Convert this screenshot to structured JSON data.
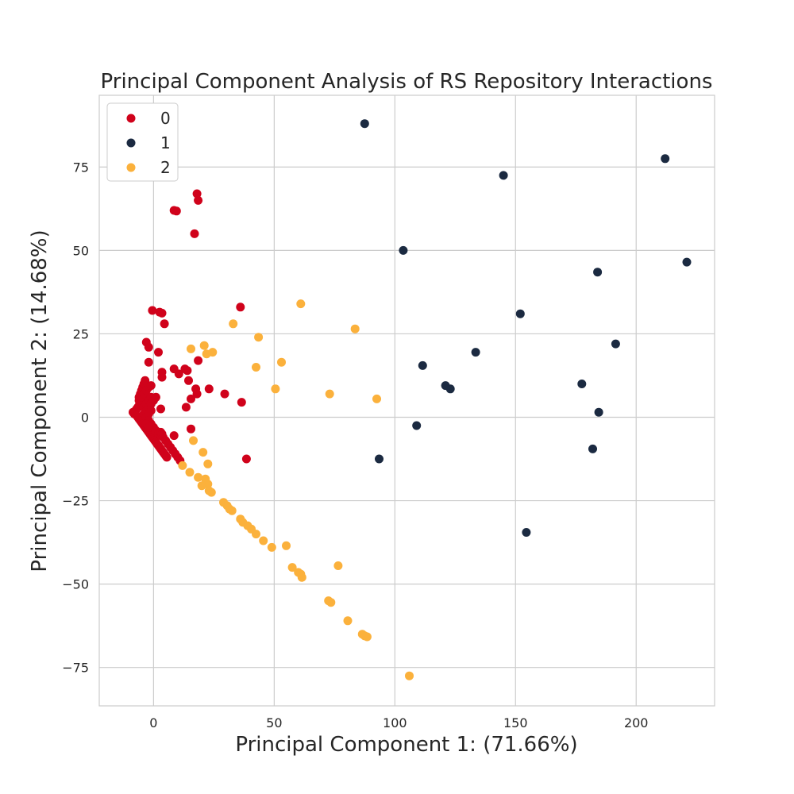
{
  "chart_data": {
    "type": "scatter",
    "title": "Principal Component Analysis of RS Repository Interactions",
    "xlabel": "Principal Component 1: (71.66%)",
    "ylabel": "Principal Component 2: (14.68%)",
    "xlim": [
      -22.5,
      232.5
    ],
    "ylim": [
      -86.5,
      96.5
    ],
    "xticks": [
      0,
      50,
      100,
      150,
      200
    ],
    "yticks": [
      -75,
      -50,
      -25,
      0,
      25,
      50,
      75
    ],
    "xtick_labels": [
      "0",
      "50",
      "100",
      "150",
      "200"
    ],
    "ytick_labels": [
      "−75",
      "−50",
      "−25",
      "0",
      "25",
      "50",
      "75"
    ],
    "grid": true,
    "legend_position": "top-left",
    "series": [
      {
        "name": "0",
        "color": "#d0021b",
        "points": [
          [
            -8.5,
            1.5
          ],
          [
            -8,
            1
          ],
          [
            -7.5,
            2
          ],
          [
            -7,
            2.5
          ],
          [
            -6.5,
            3
          ],
          [
            -6,
            3.5
          ],
          [
            -5.5,
            4
          ],
          [
            -5,
            4.5
          ],
          [
            -7,
            0.5
          ],
          [
            -6.5,
            0
          ],
          [
            -6,
            -0.5
          ],
          [
            -5.5,
            -1
          ],
          [
            -5,
            -1.5
          ],
          [
            -4.5,
            -2
          ],
          [
            -4,
            -2.5
          ],
          [
            -3.5,
            -3
          ],
          [
            -3,
            -3.5
          ],
          [
            -2.5,
            -4
          ],
          [
            -2,
            -4.5
          ],
          [
            -1.5,
            -5
          ],
          [
            -1,
            -5.5
          ],
          [
            -0.5,
            -6
          ],
          [
            0,
            -6.5
          ],
          [
            0.5,
            -7
          ],
          [
            1,
            -7.5
          ],
          [
            1.5,
            -8
          ],
          [
            2,
            -8.5
          ],
          [
            2.5,
            -9
          ],
          [
            3,
            -9.5
          ],
          [
            3.5,
            -10
          ],
          [
            4,
            -10.5
          ],
          [
            4.5,
            -11
          ],
          [
            5,
            -11.5
          ],
          [
            5.5,
            -12
          ],
          [
            -6,
            6
          ],
          [
            -5.5,
            7
          ],
          [
            -5,
            8
          ],
          [
            -4.5,
            9
          ],
          [
            -4,
            10
          ],
          [
            -3.5,
            11
          ],
          [
            -6,
            5
          ],
          [
            -5,
            6
          ],
          [
            -4,
            7
          ],
          [
            -3,
            8
          ],
          [
            -2,
            9
          ],
          [
            -1,
            9.5
          ],
          [
            -4,
            3
          ],
          [
            -3,
            4
          ],
          [
            -2,
            5
          ],
          [
            -1,
            6
          ],
          [
            -4,
            1
          ],
          [
            -3,
            2
          ],
          [
            -2,
            3
          ],
          [
            -1,
            4
          ],
          [
            0,
            5
          ],
          [
            1,
            6
          ],
          [
            -3,
            0
          ],
          [
            -2,
            1
          ],
          [
            -1,
            2
          ],
          [
            -2,
            -1
          ],
          [
            -1,
            -2
          ],
          [
            0,
            -3
          ],
          [
            1,
            -4
          ],
          [
            2,
            -5
          ],
          [
            3,
            -5.5
          ],
          [
            3,
            -4.5
          ],
          [
            3.5,
            -5
          ],
          [
            4,
            -6
          ],
          [
            5,
            -7
          ],
          [
            6,
            -8
          ],
          [
            7,
            -9
          ],
          [
            8,
            -10
          ],
          [
            9,
            -11
          ],
          [
            10,
            -12
          ],
          [
            11,
            -13
          ],
          [
            -3,
            -2
          ],
          [
            -2,
            -3
          ],
          [
            18,
            67
          ],
          [
            18.5,
            65
          ],
          [
            8.5,
            62
          ],
          [
            9.5,
            61.8
          ],
          [
            17,
            55
          ],
          [
            -0.5,
            32
          ],
          [
            2.5,
            31.5
          ],
          [
            3.5,
            31.2
          ],
          [
            36,
            33
          ],
          [
            4.5,
            28
          ],
          [
            -3,
            22.5
          ],
          [
            -2,
            21
          ],
          [
            2,
            19.5
          ],
          [
            18.5,
            17
          ],
          [
            -2,
            16.5
          ],
          [
            13,
            14.5
          ],
          [
            8.5,
            14.5
          ],
          [
            14,
            14
          ],
          [
            3.5,
            13.5
          ],
          [
            10.5,
            13
          ],
          [
            3.5,
            12
          ],
          [
            14.5,
            11
          ],
          [
            17.5,
            8.5
          ],
          [
            23,
            8.5
          ],
          [
            18,
            7
          ],
          [
            29.5,
            7
          ],
          [
            15.5,
            5.5
          ],
          [
            3,
            2.5
          ],
          [
            13.5,
            3
          ],
          [
            36.5,
            4.5
          ],
          [
            15.5,
            -3.5
          ],
          [
            8.5,
            -5.5
          ],
          [
            38.5,
            -12.5
          ]
        ]
      },
      {
        "name": "1",
        "color": "#1b2a41",
        "points": [
          [
            87.5,
            88
          ],
          [
            145,
            72.5
          ],
          [
            212,
            77.5
          ],
          [
            103.5,
            50
          ],
          [
            221,
            46.5
          ],
          [
            184,
            43.5
          ],
          [
            152,
            31
          ],
          [
            191.5,
            22
          ],
          [
            133.5,
            19.5
          ],
          [
            111.5,
            15.5
          ],
          [
            121,
            9.5
          ],
          [
            123,
            8.5
          ],
          [
            177.5,
            10
          ],
          [
            184.5,
            1.5
          ],
          [
            109,
            -2.5
          ],
          [
            182,
            -9.5
          ],
          [
            93.5,
            -12.5
          ],
          [
            154.5,
            -34.5
          ]
        ]
      },
      {
        "name": "2",
        "color": "#fbb13c",
        "points": [
          [
            61,
            34
          ],
          [
            33,
            28
          ],
          [
            83.5,
            26.5
          ],
          [
            43.5,
            24
          ],
          [
            15.5,
            20.5
          ],
          [
            21,
            21.5
          ],
          [
            24.5,
            19.5
          ],
          [
            22,
            19
          ],
          [
            53,
            16.5
          ],
          [
            42.5,
            15
          ],
          [
            50.5,
            8.5
          ],
          [
            73,
            7
          ],
          [
            92.5,
            5.5
          ],
          [
            16.5,
            -7
          ],
          [
            20.5,
            -10.5
          ],
          [
            22.5,
            -14
          ],
          [
            12,
            -14.5
          ],
          [
            15,
            -16.5
          ],
          [
            18.5,
            -18
          ],
          [
            21.5,
            -18.5
          ],
          [
            22.5,
            -20
          ],
          [
            20,
            -20.5
          ],
          [
            23,
            -22
          ],
          [
            24,
            -22.5
          ],
          [
            29,
            -25.5
          ],
          [
            30.5,
            -26.5
          ],
          [
            31.5,
            -27.5
          ],
          [
            32.5,
            -28
          ],
          [
            36,
            -30.5
          ],
          [
            37,
            -31.5
          ],
          [
            39,
            -32.5
          ],
          [
            40.5,
            -33.5
          ],
          [
            42.5,
            -35
          ],
          [
            45.5,
            -37
          ],
          [
            49,
            -39
          ],
          [
            55,
            -38.5
          ],
          [
            57.5,
            -45
          ],
          [
            60,
            -46.5
          ],
          [
            61,
            -47
          ],
          [
            61.5,
            -48
          ],
          [
            76.5,
            -44.5
          ],
          [
            72.5,
            -55
          ],
          [
            73.5,
            -55.5
          ],
          [
            80.5,
            -61
          ],
          [
            86.5,
            -65
          ],
          [
            87.5,
            -65.5
          ],
          [
            88.5,
            -65.8
          ],
          [
            106,
            -77.5
          ]
        ]
      }
    ]
  }
}
